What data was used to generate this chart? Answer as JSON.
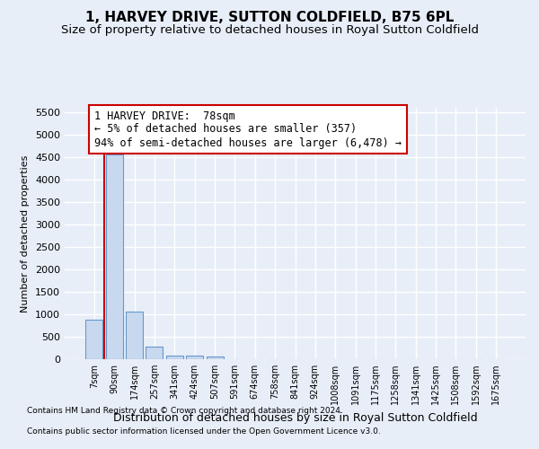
{
  "title_line1": "1, HARVEY DRIVE, SUTTON COLDFIELD, B75 6PL",
  "title_line2": "Size of property relative to detached houses in Royal Sutton Coldfield",
  "xlabel": "Distribution of detached houses by size in Royal Sutton Coldfield",
  "ylabel": "Number of detached properties",
  "footer_line1": "Contains HM Land Registry data © Crown copyright and database right 2024.",
  "footer_line2": "Contains public sector information licensed under the Open Government Licence v3.0.",
  "categories": [
    "7sqm",
    "90sqm",
    "174sqm",
    "257sqm",
    "341sqm",
    "424sqm",
    "507sqm",
    "591sqm",
    "674sqm",
    "758sqm",
    "841sqm",
    "924sqm",
    "1008sqm",
    "1091sqm",
    "1175sqm",
    "1258sqm",
    "1341sqm",
    "1425sqm",
    "1508sqm",
    "1592sqm",
    "1675sqm"
  ],
  "values": [
    880,
    4560,
    1060,
    280,
    90,
    80,
    55,
    0,
    0,
    0,
    0,
    0,
    0,
    0,
    0,
    0,
    0,
    0,
    0,
    0,
    0
  ],
  "bar_color": "#c8d8ee",
  "bar_edge_color": "#6699cc",
  "highlight_line_color": "#cc0000",
  "annotation_text": "1 HARVEY DRIVE:  78sqm\n← 5% of detached houses are smaller (357)\n94% of semi-detached houses are larger (6,478) →",
  "annotation_box_color": "#ffffff",
  "annotation_box_edge_color": "#cc0000",
  "ylim": [
    0,
    5600
  ],
  "yticks": [
    0,
    500,
    1000,
    1500,
    2000,
    2500,
    3000,
    3500,
    4000,
    4500,
    5000,
    5500
  ],
  "bg_color": "#e8eef8",
  "plot_bg_color": "#e8eef8",
  "grid_color": "#ffffff",
  "title_fontsize": 11,
  "subtitle_fontsize": 9.5,
  "ylabel_fontsize": 8,
  "xlabel_fontsize": 9,
  "tick_fontsize": 8,
  "xtick_fontsize": 7,
  "annotation_fontsize": 8.5
}
